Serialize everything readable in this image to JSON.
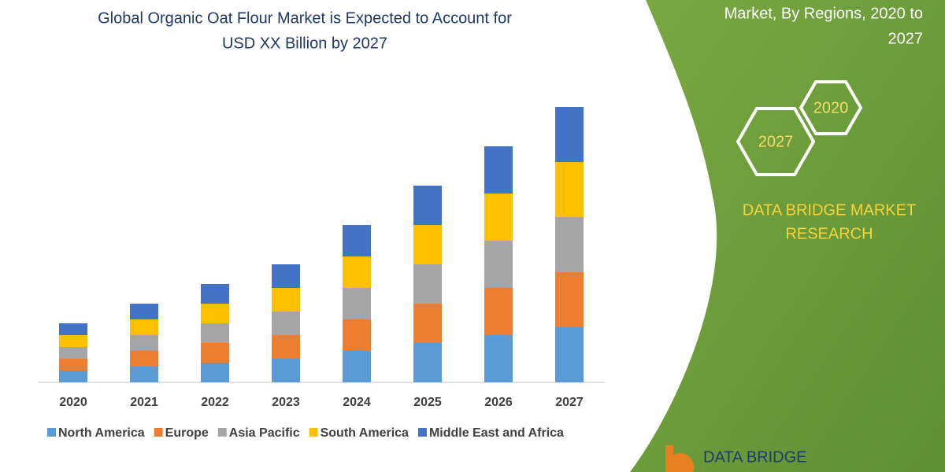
{
  "chart_data": {
    "type": "stacked_bar",
    "title": [
      "Global Organic Oat Flour Market is Expected to Account for",
      "USD XX Billion by 2027"
    ],
    "categories": [
      "2020",
      "2021",
      "2022",
      "2023",
      "2024",
      "2025",
      "2026",
      "2027"
    ],
    "series": [
      {
        "name": "North America",
        "color": "#5b9bd5",
        "values": [
          1.5,
          2,
          2.5,
          3,
          4,
          5,
          6,
          7
        ]
      },
      {
        "name": "Europe",
        "color": "#ed7d31",
        "values": [
          1.5,
          2,
          2.5,
          3,
          4,
          5,
          6,
          7
        ]
      },
      {
        "name": "Asia Pacific",
        "color": "#a5a5a5",
        "values": [
          1.5,
          2,
          2.5,
          3,
          4,
          5,
          6,
          7
        ]
      },
      {
        "name": "South America",
        "color": "#ffc000",
        "values": [
          1.5,
          2,
          2.5,
          3,
          4,
          5,
          6,
          7
        ]
      },
      {
        "name": "Middle East and Africa",
        "color": "#4472c4",
        "values": [
          1.5,
          2,
          2.5,
          3,
          4,
          5,
          6,
          7
        ]
      }
    ],
    "ylim": [
      0,
      36
    ]
  },
  "panel": {
    "heading": [
      "Market, By Regions, 2020 to",
      "2027"
    ],
    "badges": [
      "2020",
      "2027"
    ],
    "brand": [
      "DATA BRIDGE MARKET",
      "RESEARCH"
    ],
    "logo": "DATA BRIDGE"
  }
}
